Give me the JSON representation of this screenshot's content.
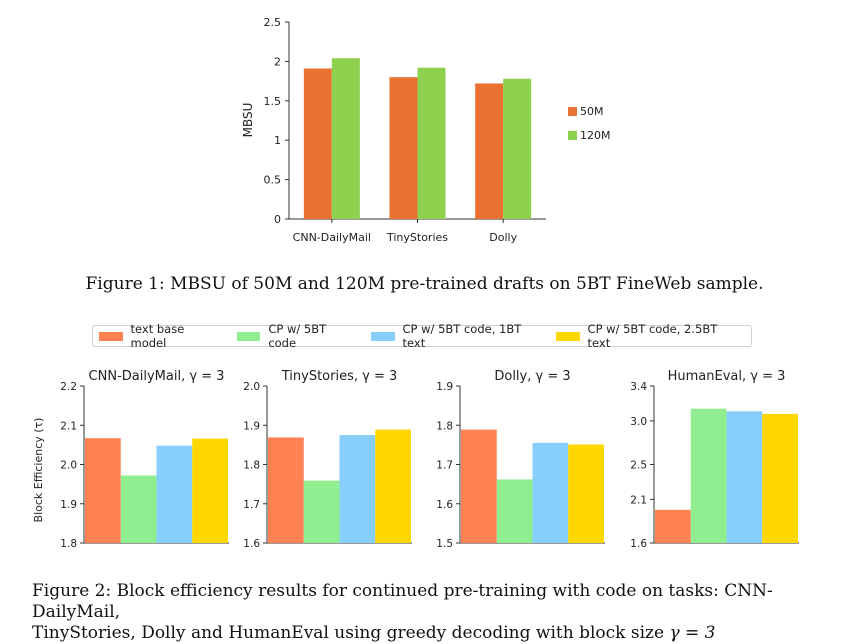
{
  "figure1": {
    "caption": "Figure 1: MBSU of 50M and 120M pre-trained drafts on 5BT FineWeb sample.",
    "chart_data": {
      "type": "bar",
      "categories": [
        "CNN-DailyMail",
        "TinyStories",
        "Dolly"
      ],
      "series": [
        {
          "name": "50M",
          "color": "#e97132",
          "values": [
            1.91,
            1.8,
            1.72
          ]
        },
        {
          "name": "120M",
          "color": "#8ed14f",
          "values": [
            2.04,
            1.92,
            1.78
          ]
        }
      ],
      "ylabel": "MBSU",
      "ylim": [
        0,
        2.5
      ],
      "yticks": [
        0,
        0.5,
        1,
        1.5,
        2,
        2.5
      ],
      "ytick_labels": [
        "0",
        "0.5",
        "1",
        "1.5",
        "2",
        "2.5"
      ],
      "legend_position": "right",
      "grid": false
    }
  },
  "figure2": {
    "caption_line1": "Figure 2: Block efficiency results for continued pre-training with code on tasks: CNN-DailyMail,",
    "caption_line2_text": "TinyStories, Dolly and HumanEval using greedy decoding with block size ",
    "caption_math": "γ = 3",
    "legend": [
      {
        "name": "text base model",
        "color": "#ff8154"
      },
      {
        "name": "CP w/ 5BT code",
        "color": "#90ee90"
      },
      {
        "name": "CP w/ 5BT code, 1BT text",
        "color": "#87cefa"
      },
      {
        "name": "CP w/ 5BT code, 2.5BT text",
        "color": "#ffd700"
      }
    ],
    "ylabel": "Block Efficiency (τ)",
    "chart_data": [
      {
        "type": "bar",
        "title": "CNN-DailyMail, γ = 3",
        "values": [
          2.067,
          1.972,
          2.048,
          2.066
        ],
        "ylim": [
          1.8,
          2.2
        ],
        "yticks": [
          1.8,
          1.9,
          2.0,
          2.1,
          2.2
        ],
        "ytick_labels": [
          "1.8",
          "1.9",
          "2.0",
          "2.1",
          "2.2"
        ]
      },
      {
        "type": "bar",
        "title": "TinyStories, γ = 3",
        "values": [
          1.869,
          1.759,
          1.875,
          1.889
        ],
        "ylim": [
          1.6,
          2.0
        ],
        "yticks": [
          1.6,
          1.7,
          1.8,
          1.9,
          2.0
        ],
        "ytick_labels": [
          "1.6",
          "1.7",
          "1.8",
          "1.9",
          "2.0"
        ]
      },
      {
        "type": "bar",
        "title": "Dolly, γ = 3",
        "values": [
          1.789,
          1.662,
          1.755,
          1.751
        ],
        "ylim": [
          1.5,
          1.9
        ],
        "yticks": [
          1.5,
          1.6,
          1.7,
          1.8,
          1.9
        ],
        "ytick_labels": [
          "1.5",
          "1.6",
          "1.7",
          "1.8",
          "1.9"
        ]
      },
      {
        "type": "bar",
        "title": "HumanEval, γ = 3",
        "values": [
          1.98,
          3.14,
          3.11,
          3.08
        ],
        "ylim": [
          1.6,
          3.4
        ],
        "yticks": [
          1.6,
          2.1,
          2.5,
          3.0,
          3.4
        ],
        "ytick_labels": [
          "1.6",
          "2.1",
          "2.5",
          "3.0",
          "3.4"
        ]
      }
    ]
  }
}
